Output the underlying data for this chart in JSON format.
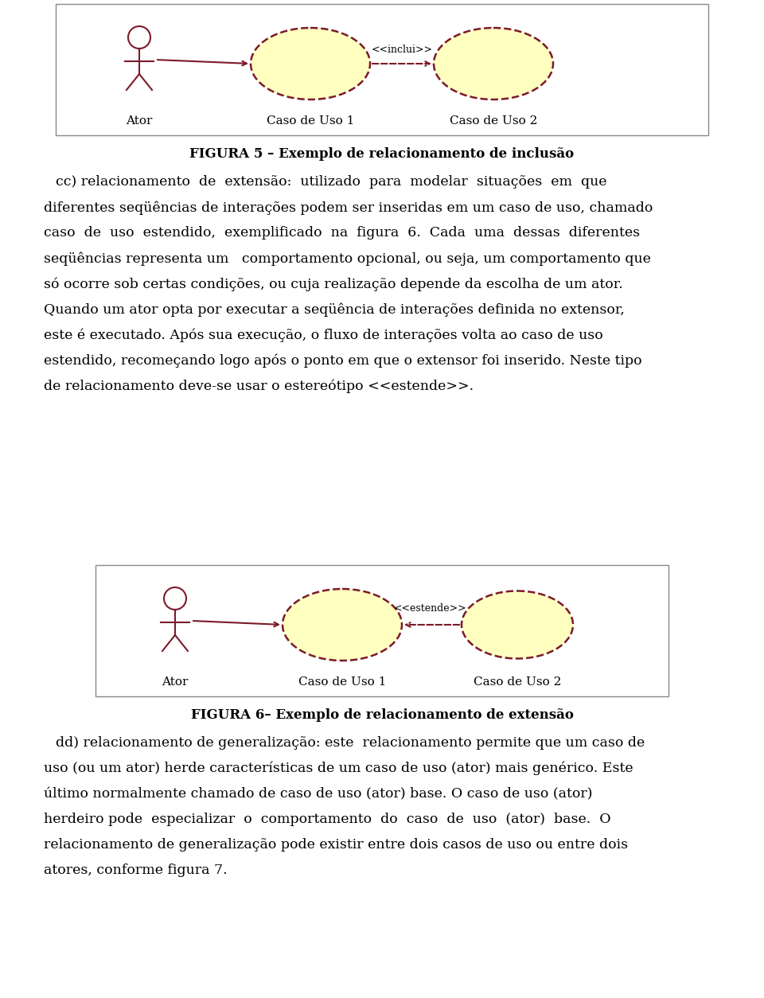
{
  "bg_color": "#ffffff",
  "text_color": "#000000",
  "diagram_color": "#7b1a2a",
  "ellipse_fill": "#ffffc0",
  "fig1_caption": "FIGURA 5 – Exemplo de relacionamento de inclusão",
  "fig2_caption": "FIGURA 6– Exemplo de relacionamento de extensão",
  "para1": "cc) relacionamento  de  extensão:  utilizado  para  modelar  situações  em  que\ndiferentes seqüências de interações podem ser inseridas em um caso de uso, chamado\ncaso  de  uso  estendido,  exemplificado  na  figura  6.  Cada  uma  dessas  diferentes\nseqüências representa um   comportamento opcional, ou seja, um comportamento que\nsó ocorre sob certas condições, ou cuja realização depende da escolha de um ator.\nQuando um ator opta por executar a seqüência de interações definida no extensor,\neste é executado. Após sua execução, o fluxo de interações volta ao caso de uso\nestendido, recomeçando logo após o ponto em que o extensor foi inserido. Neste tipo\nde relacionamento deve-se usar o estereótipo <<estende>>.",
  "para2": "dd) relacionamento de generalização: este  relacionamento permite que um caso de\nuso (ou um ator) herde características de um caso de uso (ator) mais genérico. Este\núltimo normalmente chamado de caso de uso (ator) base. O caso de uso (ator)\nherdeiro pode  especializar  o  comportamento  do  caso  de  uso  (ator)  base.  O\nrelacionamento de generalização pode existir entre dois casos de uso ou entre dois\natores, conforme figura 7.",
  "inclui_label": "<<inclui>>",
  "estende_label": "<<estende>>",
  "ator_label": "Ator",
  "uso1_label": "Caso de Uso 1",
  "uso2_label": "Caso de Uso 2"
}
